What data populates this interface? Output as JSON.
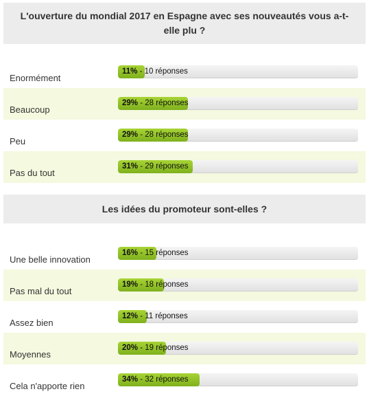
{
  "colors": {
    "header_bg": "#ececec",
    "alt_row_bg": "#f4f9df",
    "bar_fill": "#8dc12a",
    "bar_track": "#e8e8e8"
  },
  "polls": [
    {
      "question": "L'ouverture du mondial 2017 en Espagne avec ses nouveautés vous a-t-elle plu ?",
      "rows": [
        {
          "label": "Enormément",
          "percent_text": "11%",
          "votes_text": " - 10 réponses",
          "fraction": 0.11
        },
        {
          "label": "Beaucoup",
          "percent_text": "29%",
          "votes_text": " - 28 réponses",
          "fraction": 0.29
        },
        {
          "label": "Peu",
          "percent_text": "29%",
          "votes_text": " - 28 réponses",
          "fraction": 0.29
        },
        {
          "label": "Pas du tout",
          "percent_text": "31%",
          "votes_text": " - 29 réponses",
          "fraction": 0.31
        }
      ]
    },
    {
      "question": "Les idées du promoteur sont-elles ?",
      "rows": [
        {
          "label": "Une belle innovation",
          "percent_text": "16%",
          "votes_text": " - 15 réponses",
          "fraction": 0.16
        },
        {
          "label": "Pas mal du tout",
          "percent_text": "19%",
          "votes_text": " - 18 réponses",
          "fraction": 0.19
        },
        {
          "label": "Assez bien",
          "percent_text": "12%",
          "votes_text": " - 11 réponses",
          "fraction": 0.12
        },
        {
          "label": "Moyennes",
          "percent_text": "20%",
          "votes_text": " - 19 réponses",
          "fraction": 0.2
        },
        {
          "label": "Cela n'apporte rien",
          "percent_text": "34%",
          "votes_text": " - 32 réponses",
          "fraction": 0.34
        }
      ]
    }
  ]
}
